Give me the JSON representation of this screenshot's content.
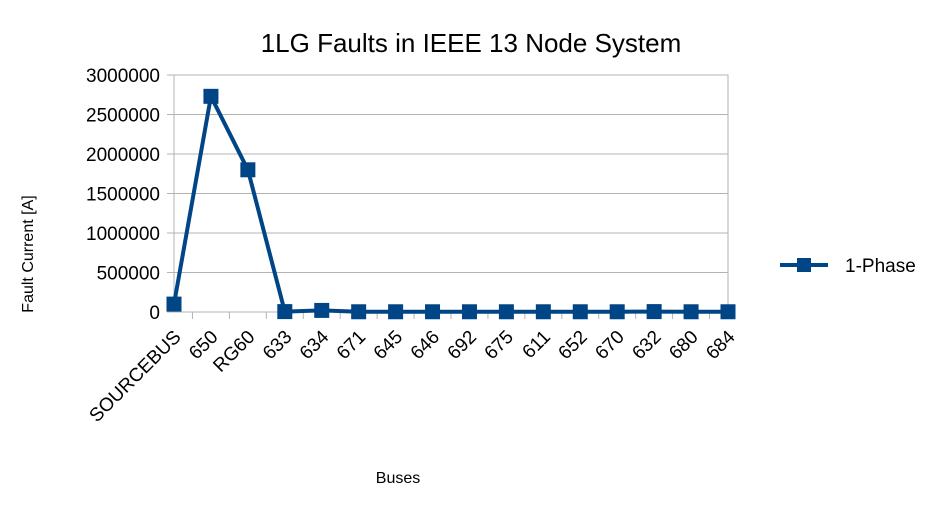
{
  "chart_data": {
    "type": "line",
    "title": "1LG Faults in IEEE 13 Node System",
    "xlabel": "Buses",
    "ylabel": "Fault Current [A]",
    "categories": [
      "SOURCEBUS",
      "650",
      "RG60",
      "633",
      "634",
      "671",
      "645",
      "646",
      "692",
      "675",
      "611",
      "652",
      "670",
      "632",
      "680",
      "684"
    ],
    "series": [
      {
        "name": "1-Phase",
        "color": "#004586",
        "marker": "square",
        "values": [
          100000,
          2730000,
          1800000,
          5000,
          20000,
          3000,
          3000,
          3000,
          3000,
          3000,
          3000,
          3000,
          3000,
          5000,
          3000,
          3000
        ]
      }
    ],
    "ylim": [
      0,
      3000000
    ],
    "yticks": [
      "0",
      "500000",
      "1000000",
      "1500000",
      "2000000",
      "2500000",
      "3000000"
    ],
    "grid": true,
    "legend_position": "right"
  }
}
